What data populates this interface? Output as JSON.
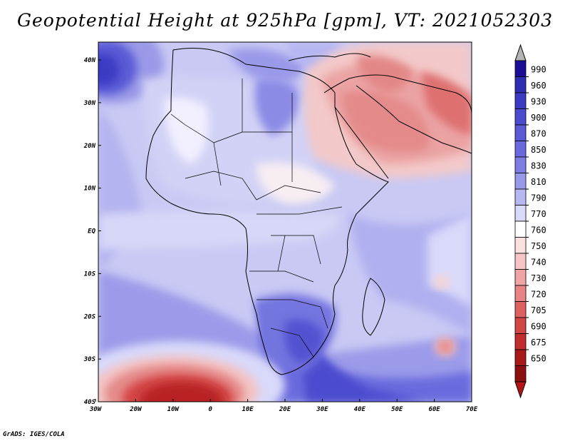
{
  "title": "Geopotential Height at 925hPa [gpm], VT: 2021052303",
  "footer": "GrADS: IGES/COLA",
  "map": {
    "lon_ticks": [
      "30W",
      "20W",
      "10W",
      "0",
      "10E",
      "20E",
      "30E",
      "40E",
      "50E",
      "60E",
      "70E"
    ],
    "lat_ticks": [
      "40N",
      "30N",
      "20N",
      "10N",
      "EQ",
      "10S",
      "20S",
      "30S",
      "40S"
    ]
  },
  "colorbar": {
    "levels": [
      "990",
      "960",
      "930",
      "900",
      "870",
      "850",
      "830",
      "810",
      "790",
      "770",
      "760",
      "750",
      "740",
      "730",
      "720",
      "705",
      "690",
      "675",
      "650"
    ],
    "colors": [
      "#1a0d96",
      "#2e2eb4",
      "#3a3ac4",
      "#4b4bcf",
      "#5a5ad6",
      "#6a6ade",
      "#7d7de4",
      "#9999ea",
      "#b7b7f2",
      "#d9d9fa",
      "#ffffff",
      "#fbe0e0",
      "#f6c6c6",
      "#f0a5a5",
      "#e88484",
      "#de6161",
      "#d24646",
      "#c22e2e",
      "#a81818",
      "#8c1010"
    ],
    "over_color": "#b4b4b4",
    "under_color": "#b41414"
  }
}
